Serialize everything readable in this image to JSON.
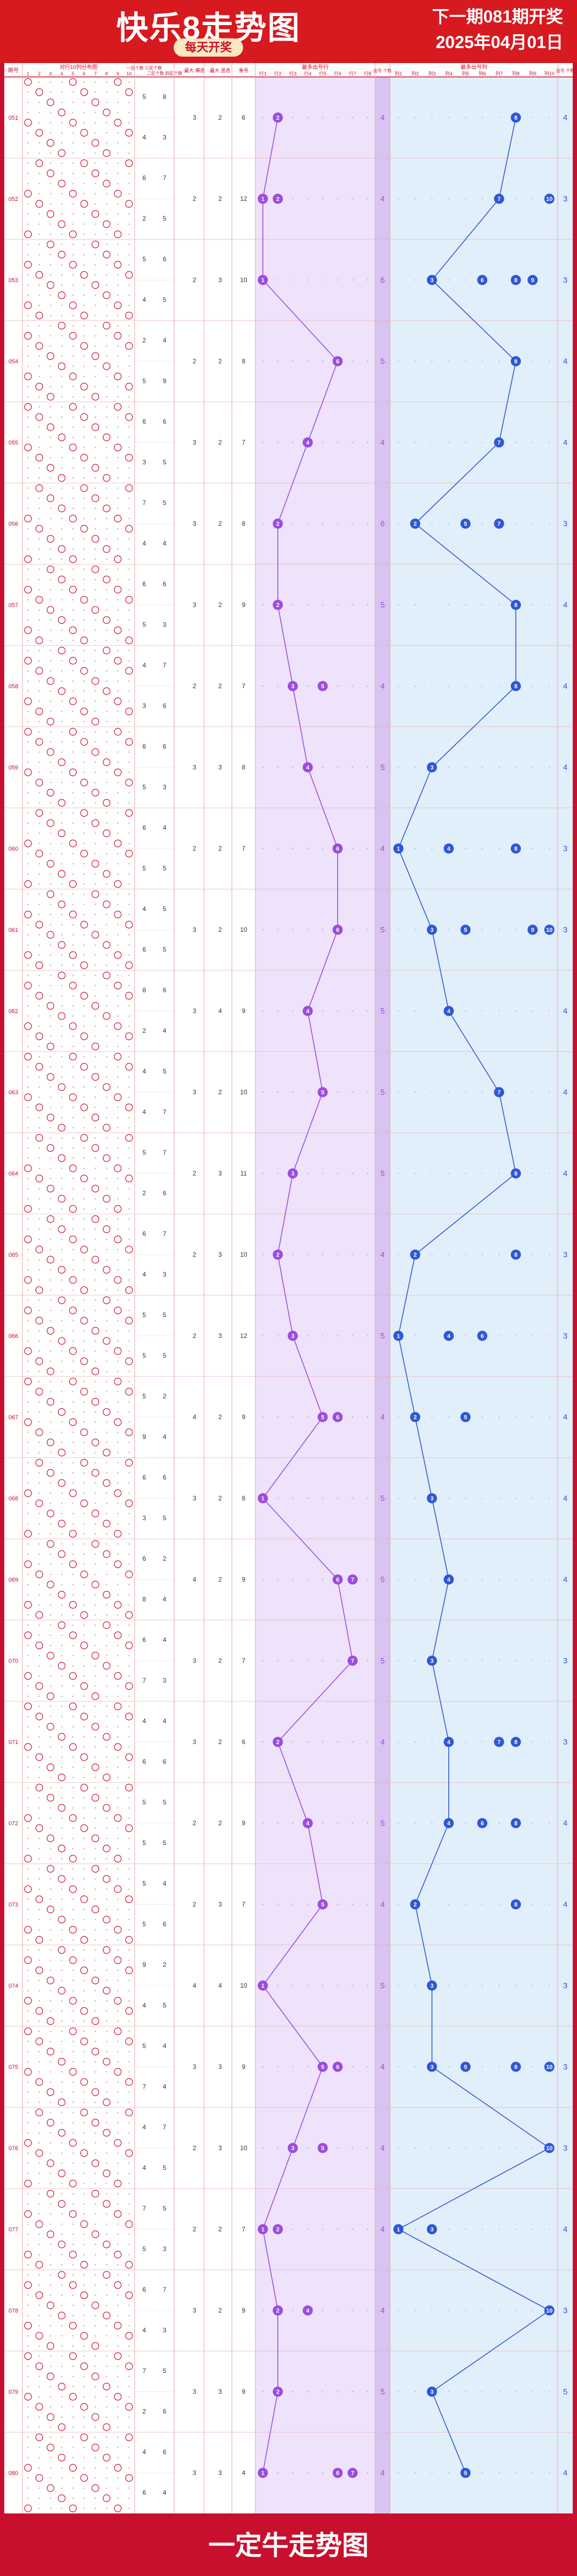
{
  "header": {
    "title": "快乐8走势图",
    "subtitle": "每天开奖",
    "next_draw": "下一期081期开奖",
    "draw_date": "2025年04月01日"
  },
  "footer": {
    "brand": "一定牛走势图"
  },
  "columns": {
    "issue": "期号",
    "dist": "对行10列分布图",
    "dist_nums": [
      "1",
      "2",
      "3",
      "4",
      "5",
      "6",
      "7",
      "8",
      "9",
      "10"
    ],
    "odd_even_1": "一区个数 三区个数",
    "odd_even_2": "二区个数 四区个数",
    "max_row": "最大 横连",
    "max_col": "最大 竖连",
    "repeat": "重号",
    "row_title": "最多出号行",
    "row_labels": [
      "行1",
      "行2",
      "行3",
      "行4",
      "行5",
      "行6",
      "行7",
      "行8"
    ],
    "row_count": "出号 个数",
    "col_title": "最多出号列",
    "col_labels": [
      "列1",
      "列2",
      "列3",
      "列4",
      "列5",
      "列6",
      "列7",
      "列8",
      "列9",
      "列10"
    ],
    "col_count": "出号 个数"
  },
  "colors": {
    "red": "#c8102e",
    "purple": "#9b4dde",
    "blue": "#2f57d6",
    "purple_bg": "#efe2fb",
    "blue_bg": "#e1effa"
  },
  "chart_data": {
    "type": "line",
    "issues": [
      "051",
      "052",
      "053",
      "054",
      "055",
      "056",
      "057",
      "058",
      "059",
      "060",
      "061",
      "062",
      "063",
      "064",
      "065",
      "066",
      "067",
      "068",
      "069",
      "070",
      "071",
      "072",
      "073",
      "074",
      "075",
      "076",
      "077",
      "078",
      "079",
      "080"
    ],
    "zone_counts": [
      [
        5,
        8,
        4,
        3
      ],
      [
        6,
        7,
        2,
        5
      ],
      [
        5,
        6,
        4,
        5
      ],
      [
        2,
        4,
        5,
        9
      ],
      [
        6,
        6,
        3,
        5
      ],
      [
        7,
        5,
        4,
        4
      ],
      [
        6,
        6,
        5,
        3
      ],
      [
        4,
        7,
        3,
        6
      ],
      [
        6,
        6,
        5,
        3
      ],
      [
        6,
        4,
        5,
        5
      ],
      [
        4,
        5,
        6,
        5
      ],
      [
        8,
        6,
        2,
        4
      ],
      [
        4,
        5,
        4,
        7
      ],
      [
        5,
        7,
        2,
        6
      ],
      [
        6,
        7,
        4,
        3
      ],
      [
        5,
        5,
        5,
        5
      ],
      [
        5,
        2,
        9,
        4
      ],
      [
        6,
        6,
        3,
        5
      ],
      [
        6,
        2,
        8,
        4
      ],
      [
        6,
        4,
        7,
        3
      ],
      [
        4,
        4,
        6,
        6
      ],
      [
        5,
        5,
        5,
        5
      ],
      [
        5,
        4,
        5,
        6
      ],
      [
        9,
        2,
        4,
        5
      ],
      [
        5,
        4,
        7,
        4
      ],
      [
        4,
        7,
        4,
        5
      ],
      [
        7,
        5,
        5,
        3
      ],
      [
        6,
        7,
        4,
        3
      ],
      [
        7,
        5,
        2,
        6
      ],
      [
        4,
        6,
        6,
        4
      ]
    ],
    "max_row_run": [
      3,
      2,
      2,
      2,
      3,
      3,
      3,
      2,
      3,
      2,
      3,
      3,
      3,
      2,
      2,
      2,
      4,
      3,
      4,
      3,
      3,
      2,
      2,
      4,
      3,
      2,
      2,
      3,
      3,
      3
    ],
    "max_col_run": [
      2,
      2,
      3,
      2,
      2,
      2,
      2,
      2,
      3,
      2,
      2,
      4,
      2,
      3,
      3,
      3,
      2,
      2,
      2,
      2,
      2,
      2,
      3,
      4,
      3,
      3,
      2,
      2,
      3,
      3
    ],
    "repeat": [
      6,
      12,
      10,
      8,
      7,
      8,
      9,
      7,
      8,
      7,
      10,
      9,
      10,
      11,
      10,
      12,
      9,
      8,
      9,
      7,
      6,
      9,
      7,
      10,
      9,
      10,
      7,
      9,
      9,
      4
    ],
    "most_rows": [
      [
        2
      ],
      [
        1,
        2
      ],
      [
        1
      ],
      [
        6
      ],
      [
        4
      ],
      [
        2
      ],
      [
        2
      ],
      [
        3,
        5
      ],
      [
        4
      ],
      [
        6
      ],
      [
        6
      ],
      [
        4
      ],
      [
        5
      ],
      [
        3
      ],
      [
        2
      ],
      [
        3
      ],
      [
        5,
        6
      ],
      [
        1
      ],
      [
        6,
        7
      ],
      [
        7
      ],
      [
        2
      ],
      [
        4
      ],
      [
        5
      ],
      [
        1
      ],
      [
        5,
        6
      ],
      [
        3,
        5
      ],
      [
        1,
        2
      ],
      [
        2,
        4
      ],
      [
        2
      ],
      [
        1,
        6,
        7
      ]
    ],
    "row_counts": [
      4,
      4,
      6,
      5,
      4,
      6,
      5,
      4,
      5,
      4,
      5,
      5,
      5,
      5,
      4,
      5,
      4,
      5,
      5,
      5,
      4,
      5,
      4,
      5,
      4,
      4,
      4,
      4,
      5,
      4
    ],
    "most_cols": [
      [
        8
      ],
      [
        7,
        10
      ],
      [
        3,
        6,
        8,
        9
      ],
      [
        8
      ],
      [
        7
      ],
      [
        2,
        5,
        7
      ],
      [
        8
      ],
      [
        8
      ],
      [
        3
      ],
      [
        1,
        4,
        8
      ],
      [
        3,
        5,
        9,
        10
      ],
      [
        4
      ],
      [
        7
      ],
      [
        8
      ],
      [
        2,
        8
      ],
      [
        1,
        4,
        6
      ],
      [
        2,
        5
      ],
      [
        3
      ],
      [
        4
      ],
      [
        3
      ],
      [
        4,
        7,
        8
      ],
      [
        4,
        6,
        8
      ],
      [
        2,
        8
      ],
      [
        3
      ],
      [
        3,
        5,
        8,
        10
      ],
      [
        10
      ],
      [
        1,
        3
      ],
      [
        10
      ],
      [
        3
      ],
      [
        5
      ]
    ],
    "col_counts": [
      4,
      3,
      3,
      4,
      4,
      3,
      4,
      4,
      4,
      3,
      3,
      4,
      4,
      4,
      3,
      3,
      4,
      4,
      4,
      3,
      3,
      4,
      4,
      3,
      3,
      3,
      4,
      3,
      5,
      4
    ],
    "y_range": [
      1,
      30
    ],
    "x_rows": [
      1,
      8
    ],
    "x_cols": [
      1,
      10
    ],
    "legend": "none"
  }
}
